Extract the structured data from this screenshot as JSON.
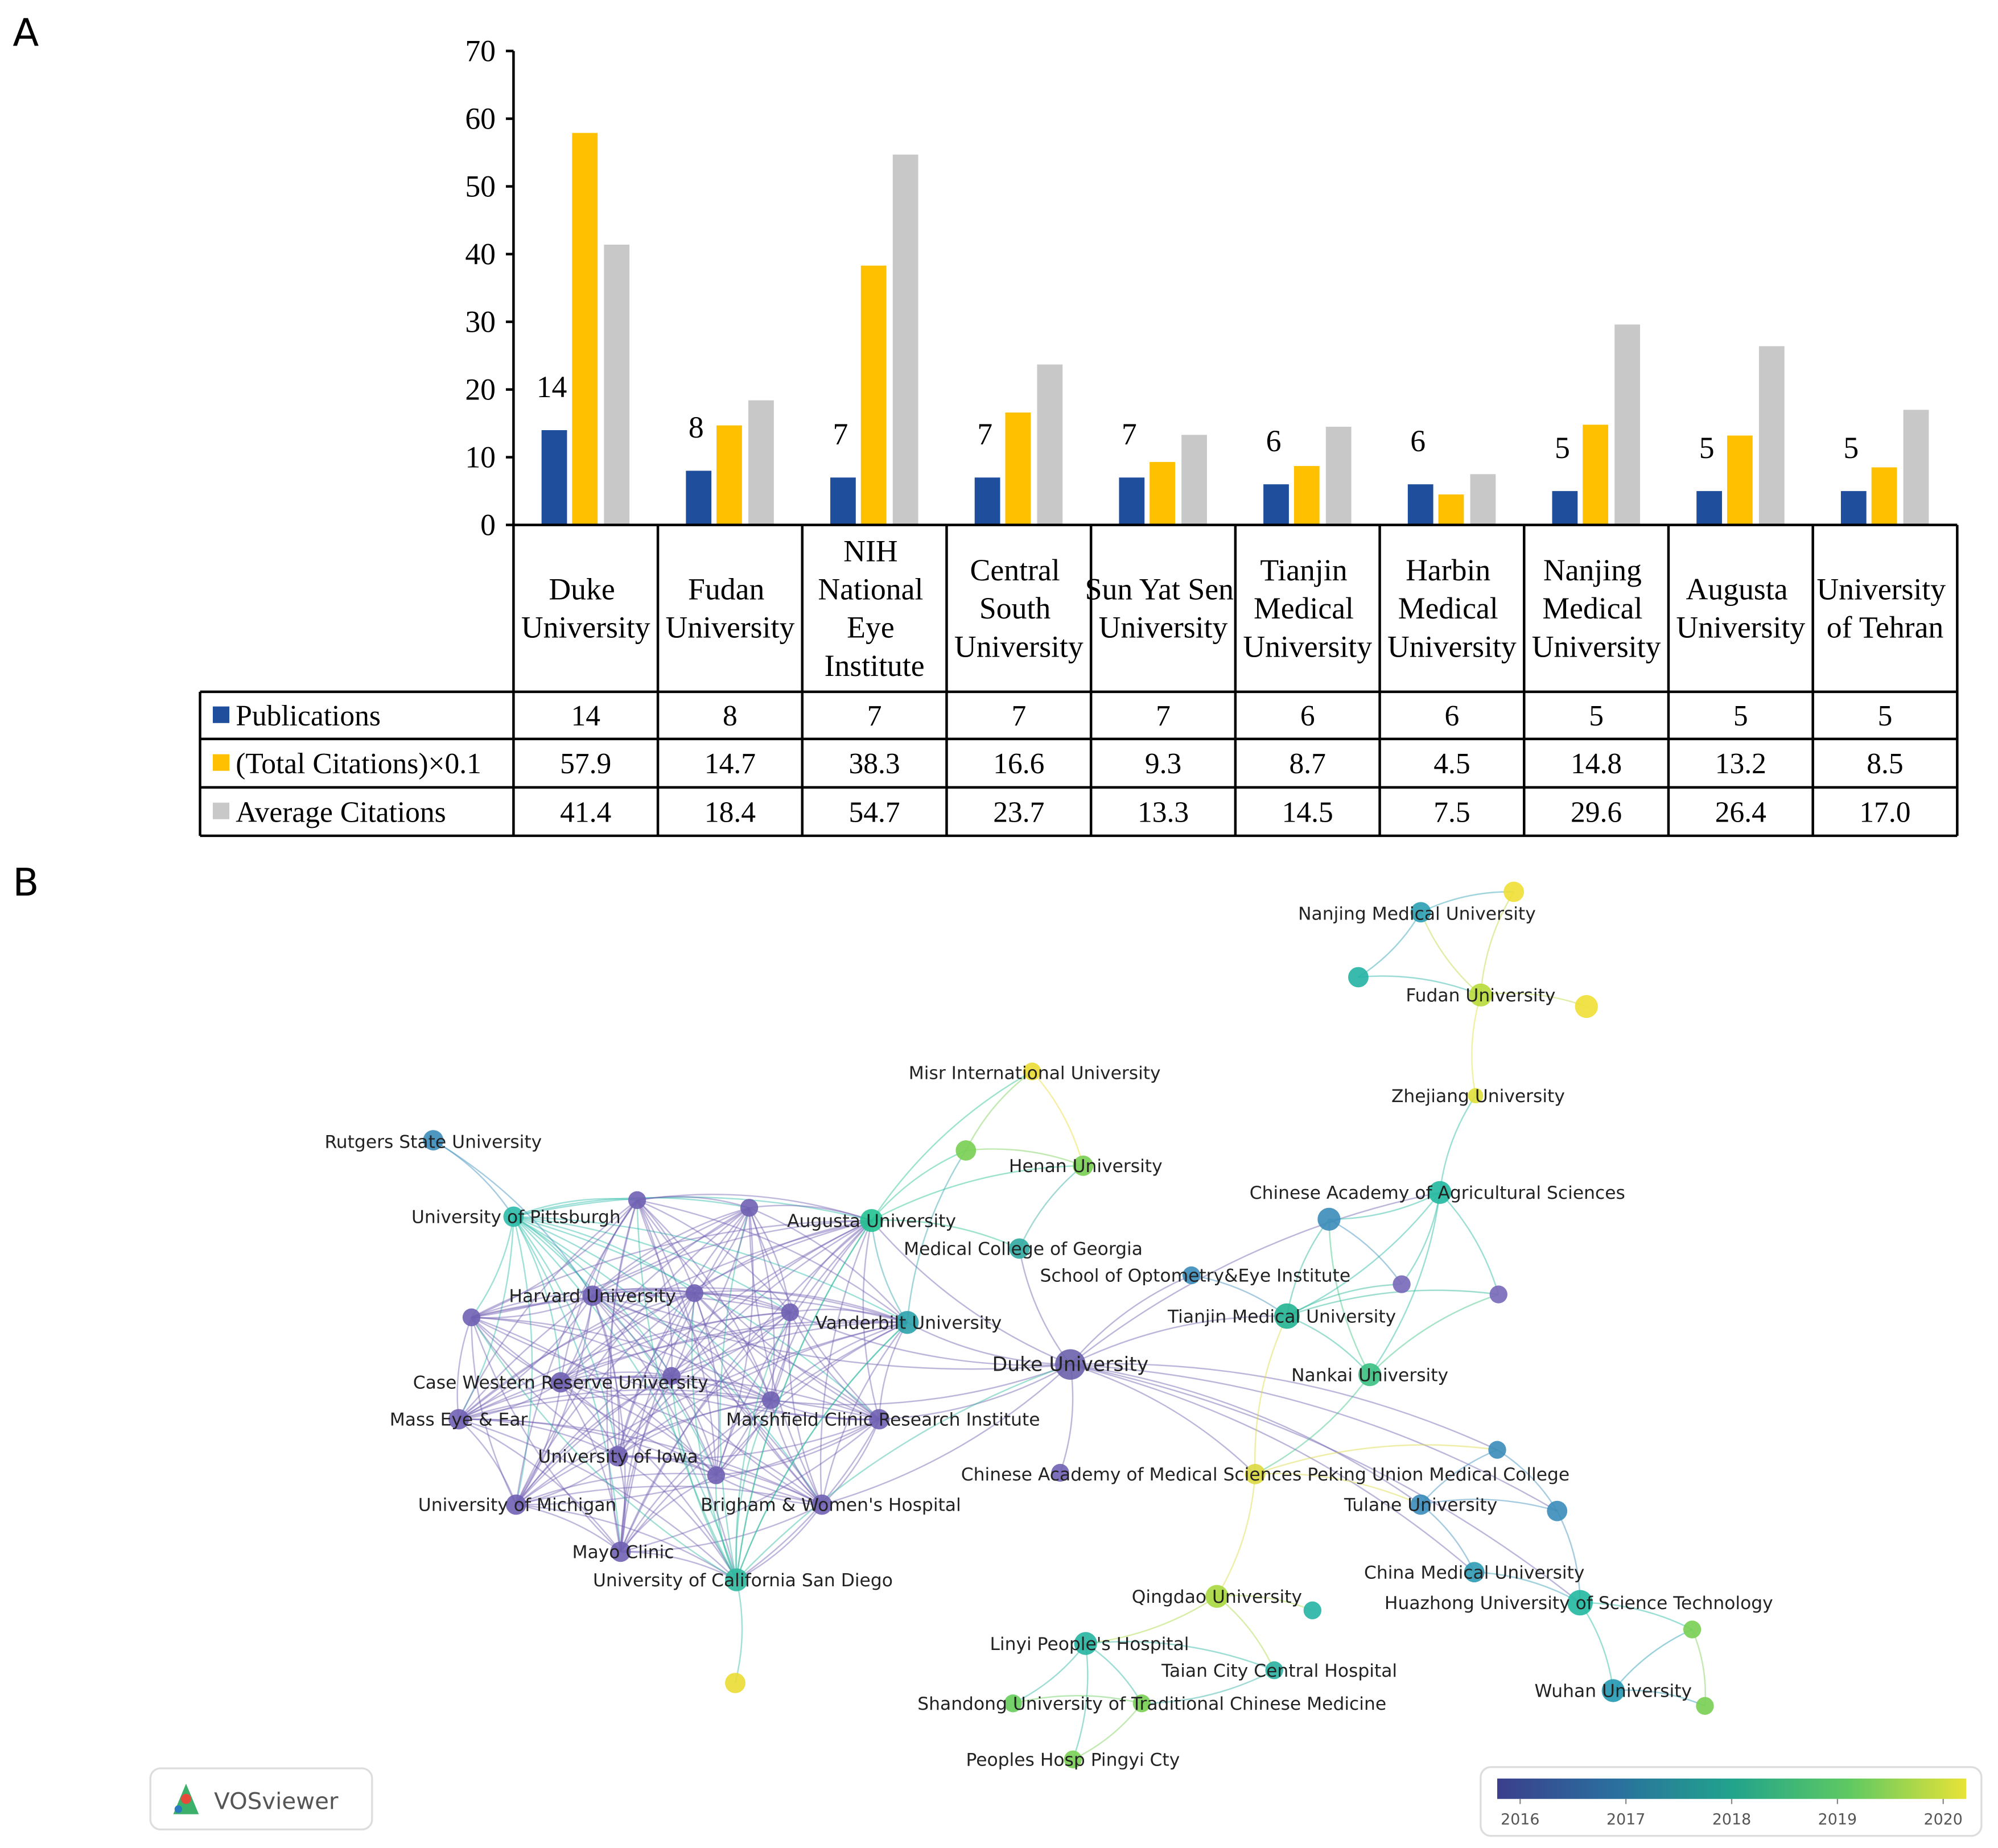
{
  "labels": {
    "a": "A",
    "b": "B"
  },
  "chart_data": {
    "type": "bar",
    "categories": [
      "Duke University",
      "Fudan University",
      "NIH National Eye Institute",
      "Central South University",
      "Sun Yat Sen University",
      "Tianjin Medical University",
      "Harbin Medical University",
      "Nanjing Medical University",
      "Augusta University",
      "University of Tehran"
    ],
    "series": [
      {
        "name": "Publications",
        "color": "#1f4e9c",
        "values": [
          14,
          8,
          7,
          7,
          7,
          6,
          6,
          5,
          5,
          5
        ]
      },
      {
        "name": "(Total Citations)×0.1",
        "color": "#ffc000",
        "values": [
          57.9,
          14.7,
          38.3,
          16.6,
          9.3,
          8.7,
          4.5,
          14.8,
          13.2,
          8.5
        ]
      },
      {
        "name": "Average Citations",
        "color": "#c8c8c8",
        "values": [
          41.4,
          18.4,
          54.7,
          23.7,
          13.3,
          14.5,
          7.5,
          29.6,
          26.4,
          17.0
        ],
        "value_labels": [
          "41.4",
          "18.4",
          "54.7",
          "23.7",
          "13.3",
          "14.5",
          "7.5",
          "29.6",
          "26.4",
          "17.0"
        ]
      }
    ],
    "ylim": [
      0,
      70
    ],
    "yticks": [
      0,
      10,
      20,
      30,
      40,
      50,
      60,
      70
    ]
  },
  "network": {
    "nodes": [
      {
        "label": "Nanjing Medical University",
        "color": "#2a9fb2"
      },
      {
        "label": "Fudan University",
        "color": "#b8da3a"
      },
      {
        "label": "Zhejiang University",
        "color": "#dfe03a"
      },
      {
        "label": "Misr International University",
        "color": "#eadb34"
      },
      {
        "label": "Rutgers State University",
        "color": "#3a8cba"
      },
      {
        "label": "Henan University",
        "color": "#78cf52"
      },
      {
        "label": "Chinese Academy of Agricultural Sciences",
        "color": "#22b8a0"
      },
      {
        "label": "University of Pittsburgh",
        "color": "#2bbaa8"
      },
      {
        "label": "Augusta University",
        "color": "#24c191"
      },
      {
        "label": "Medical College of Georgia",
        "color": "#30aaa2"
      },
      {
        "label": "School of Optometry&Eye Institute",
        "color": "#3a8cba"
      },
      {
        "label": "Harvard University",
        "color": "#7060b2"
      },
      {
        "label": "Tianjin Medical University",
        "color": "#22b392"
      },
      {
        "label": "Vanderbilt University",
        "color": "#2ba2aa"
      },
      {
        "label": "Duke University",
        "color": "#6b60ac"
      },
      {
        "label": "Nankai University",
        "color": "#3ac182"
      },
      {
        "label": "Case Western Reserve University",
        "color": "#7060b2"
      },
      {
        "label": "Mass Eye & Ear",
        "color": "#7060b2"
      },
      {
        "label": "Marshfield Clinic Research Institute",
        "color": "#7060b2"
      },
      {
        "label": "University of Iowa",
        "color": "#7060b2"
      },
      {
        "label": "Chinese Academy of Medical Sciences Peking Union Medical College",
        "color": "#dcd940"
      },
      {
        "label": "University of Michigan",
        "color": "#7060b2"
      },
      {
        "label": "Brigham & Women's Hospital",
        "color": "#7060b2"
      },
      {
        "label": "Tulane University",
        "color": "#3a8cba"
      },
      {
        "label": "Mayo Clinic",
        "color": "#7060b2"
      },
      {
        "label": "University of California San Diego",
        "color": "#30b9a0"
      },
      {
        "label": "China Medical University",
        "color": "#2f9bb4"
      },
      {
        "label": "Qingdao University",
        "color": "#a9d83e"
      },
      {
        "label": "Huazhong University of Science Technology",
        "color": "#22b8a0"
      },
      {
        "label": "Linyi People's Hospital",
        "color": "#26b4a0"
      },
      {
        "label": "Taian City Central Hospital",
        "color": "#2ab0a0"
      },
      {
        "label": "Shandong University of Traditional Chinese Medicine",
        "color": "#66cc5a"
      },
      {
        "label": "Wuhan University",
        "color": "#2298b2"
      },
      {
        "label": "Peoples Hosp Pingyi Cty",
        "color": "#7ad054"
      },
      {
        "color": "#eedf34"
      },
      {
        "color": "#24b2a4"
      },
      {
        "color": "#eedf34"
      },
      {
        "color": "#78cf52"
      },
      {
        "color": "#7060b2"
      },
      {
        "color": "#7060b2"
      },
      {
        "color": "#7060b2"
      },
      {
        "color": "#7060b2"
      },
      {
        "color": "#7060b2"
      },
      {
        "color": "#7060b2"
      },
      {
        "color": "#7060b2"
      },
      {
        "color": "#7060b2"
      },
      {
        "color": "#7060b2"
      },
      {
        "color": "#3a8cba"
      },
      {
        "color": "#7868b8"
      },
      {
        "color": "#7868b8"
      },
      {
        "color": "#3a8cba"
      },
      {
        "color": "#3a8cba"
      },
      {
        "color": "#26b4a4"
      },
      {
        "color": "#78cf52"
      },
      {
        "color": "#78cf52"
      },
      {
        "color": "#eadb34"
      },
      {
        "color": "#78cf52"
      }
    ],
    "colorbar": {
      "colors": [
        "#3b3f8c",
        "#2a6f9e",
        "#21a38c",
        "#5ec962",
        "#e8e337"
      ],
      "ticks": [
        2016,
        2017,
        2018,
        2019,
        2020
      ]
    },
    "logo": "VOSviewer"
  }
}
